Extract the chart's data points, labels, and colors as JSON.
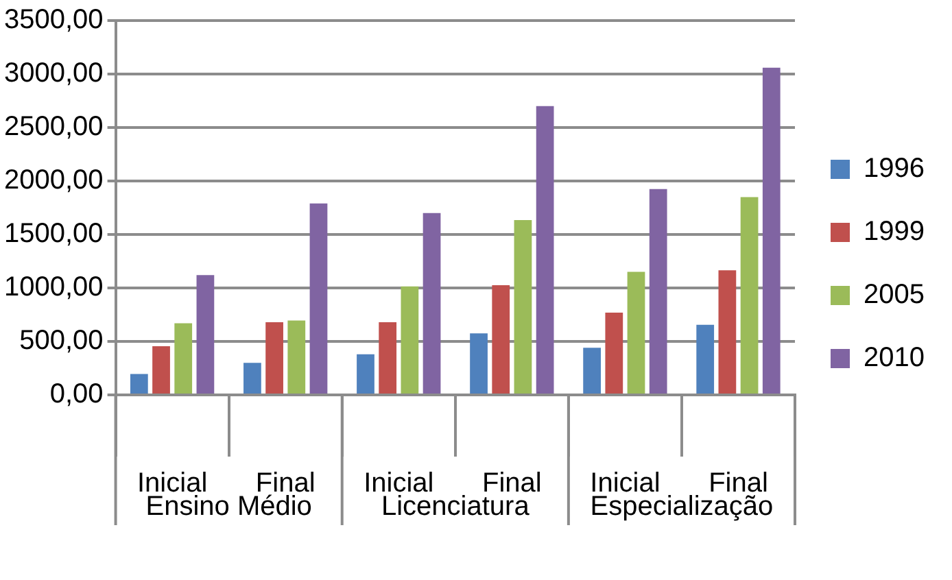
{
  "chart_data": {
    "type": "bar",
    "categories": [
      "Inicial",
      "Final",
      "Inicial",
      "Final",
      "Inicial",
      "Final"
    ],
    "series": [
      {
        "name": "1996",
        "color": "#4f81bd",
        "values": [
          195,
          300,
          380,
          575,
          440,
          655
        ]
      },
      {
        "name": "1999",
        "color": "#c0504d",
        "values": [
          455,
          680,
          680,
          1025,
          770,
          1165
        ]
      },
      {
        "name": "2005",
        "color": "#9bbb59",
        "values": [
          670,
          695,
          1015,
          1635,
          1150,
          1850
        ]
      },
      {
        "name": "2010",
        "color": "#8064a2",
        "values": [
          1120,
          1790,
          1700,
          2700,
          1925,
          3060
        ]
      }
    ],
    "annotations": [
      "Ensino Médio",
      "Licenciatura",
      "Especialização"
    ],
    "ylim": [
      0,
      3500
    ],
    "yticks": [
      {
        "value": 0,
        "label": "0,00"
      },
      {
        "value": 500,
        "label": "500,00"
      },
      {
        "value": 1000,
        "label": "1000,00"
      },
      {
        "value": 1500,
        "label": "1500,00"
      },
      {
        "value": 2000,
        "label": "2000,00"
      },
      {
        "value": 2500,
        "label": "2500,00"
      },
      {
        "value": 3000,
        "label": "3000,00"
      },
      {
        "value": 3500,
        "label": "3500,00"
      }
    ],
    "grid": "y",
    "legend": "right"
  }
}
